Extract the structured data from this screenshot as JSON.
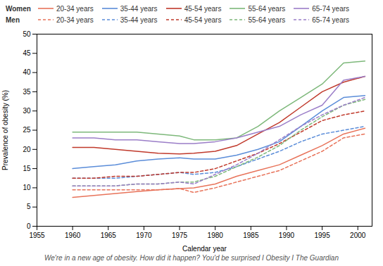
{
  "chart_data": {
    "type": "line",
    "x": [
      1960,
      1963,
      1966,
      1969,
      1972,
      1975,
      1977,
      1980,
      1983,
      1986,
      1989,
      1992,
      1995,
      1998,
      2001
    ],
    "series": [
      {
        "name": "20-34 years",
        "group": "Women",
        "color": "#E8735A",
        "line_style": "solid",
        "values": [
          7.5,
          8.0,
          8.5,
          9.0,
          9.5,
          9.8,
          10.0,
          11.0,
          13.0,
          14.5,
          16.0,
          18.5,
          21.0,
          24.0,
          25.5
        ]
      },
      {
        "name": "35-44 years",
        "group": "Women",
        "color": "#5B8DD9",
        "line_style": "solid",
        "values": [
          15.0,
          15.5,
          16.0,
          17.0,
          17.5,
          17.8,
          17.5,
          17.5,
          18.5,
          20.0,
          22.0,
          26.0,
          30.0,
          33.5,
          34.0
        ]
      },
      {
        "name": "45-54 years",
        "group": "Women",
        "color": "#C0392B",
        "line_style": "solid",
        "values": [
          20.5,
          20.5,
          20.0,
          19.5,
          19.0,
          18.8,
          19.0,
          19.5,
          21.0,
          24.0,
          27.0,
          31.0,
          35.0,
          37.5,
          39.0
        ]
      },
      {
        "name": "55-64 years",
        "group": "Women",
        "color": "#7DB87A",
        "line_style": "solid",
        "values": [
          24.5,
          24.5,
          24.5,
          24.5,
          24.0,
          23.5,
          22.5,
          22.5,
          23.0,
          26.0,
          30.0,
          33.5,
          37.0,
          42.5,
          43.0
        ]
      },
      {
        "name": "65-74 years",
        "group": "Women",
        "color": "#9B7EC8",
        "line_style": "solid",
        "values": [
          23.0,
          23.0,
          22.5,
          22.5,
          22.0,
          21.5,
          21.5,
          22.0,
          23.0,
          24.5,
          26.0,
          29.0,
          31.5,
          38.0,
          39.0
        ]
      },
      {
        "name": "20-34 years",
        "group": "Men",
        "color": "#E8735A",
        "line_style": "dashed",
        "values": [
          9.5,
          9.5,
          9.5,
          9.5,
          9.5,
          9.8,
          8.8,
          10.0,
          11.5,
          13.0,
          14.5,
          17.0,
          19.5,
          23.0,
          24.0
        ]
      },
      {
        "name": "35-44 years",
        "group": "Men",
        "color": "#5B8DD9",
        "line_style": "dashed",
        "values": [
          12.5,
          12.5,
          12.5,
          13.0,
          13.5,
          14.0,
          13.5,
          14.0,
          15.5,
          17.5,
          19.5,
          22.0,
          24.0,
          25.0,
          26.0
        ]
      },
      {
        "name": "45-54 years",
        "group": "Men",
        "color": "#C0392B",
        "line_style": "dashed",
        "values": [
          12.5,
          12.5,
          13.0,
          13.0,
          13.5,
          14.0,
          14.0,
          15.0,
          17.0,
          19.0,
          21.5,
          24.5,
          27.5,
          29.0,
          30.0
        ]
      },
      {
        "name": "55-64 years",
        "group": "Men",
        "color": "#7DB87A",
        "line_style": "dashed",
        "values": [
          10.5,
          10.5,
          10.5,
          11.0,
          11.0,
          11.5,
          11.5,
          13.0,
          15.5,
          18.0,
          21.0,
          25.0,
          28.5,
          31.5,
          33.0
        ]
      },
      {
        "name": "65-74 years",
        "group": "Men",
        "color": "#9B7EC8",
        "line_style": "dashed",
        "values": [
          10.5,
          10.5,
          10.5,
          11.0,
          11.0,
          11.5,
          11.0,
          13.5,
          16.0,
          19.0,
          22.5,
          26.0,
          29.0,
          31.5,
          33.5
        ]
      }
    ],
    "xlabel": "Calendar year",
    "ylabel": "Prevalence of obesity (%)",
    "caption": "We're in a new age of obesity. How did it happen? You'd be surprised I Obesity I The Guardian",
    "xlim": [
      1955,
      2002
    ],
    "ylim": [
      0,
      50
    ],
    "xticks": [
      1955,
      1960,
      1965,
      1970,
      1975,
      1980,
      1985,
      1990,
      1995,
      2000
    ],
    "yticks": [
      0,
      5,
      10,
      15,
      20,
      25,
      30,
      35,
      40,
      45,
      50
    ],
    "grid": false,
    "legend": "upper left"
  }
}
